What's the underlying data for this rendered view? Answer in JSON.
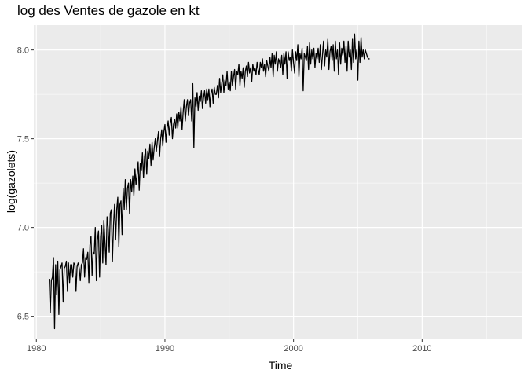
{
  "chart_data": {
    "type": "line",
    "title": "log des Ventes de gazole en kt",
    "xlabel": "Time",
    "ylabel": "log(gazolets)",
    "xlim": [
      1979.8,
      2017.8
    ],
    "ylim": [
      6.37,
      8.14
    ],
    "x_ticks": [
      1980,
      1990,
      2000,
      2010
    ],
    "x_tick_labels": [
      "1980",
      "1990",
      "2000",
      "2010"
    ],
    "y_ticks": [
      6.5,
      7.0,
      7.5,
      8.0
    ],
    "y_tick_labels": [
      "6.5",
      "7.0",
      "7.5",
      "8.0"
    ],
    "grid": true,
    "legend": "none",
    "colors": {
      "panel": "#ebebeb",
      "grid": "#ffffff",
      "line": "#000000"
    },
    "series": [
      {
        "start": 1981.0,
        "frequency": 12,
        "values": [
          6.71,
          6.52,
          6.7,
          6.72,
          6.83,
          6.43,
          6.79,
          6.62,
          6.81,
          6.51,
          6.76,
          6.78,
          6.8,
          6.58,
          6.77,
          6.78,
          6.81,
          6.64,
          6.8,
          6.69,
          6.79,
          6.79,
          6.72,
          6.8,
          6.79,
          6.64,
          6.78,
          6.8,
          6.77,
          6.7,
          6.79,
          6.8,
          6.88,
          6.72,
          6.83,
          6.82,
          6.86,
          6.69,
          6.9,
          6.95,
          6.73,
          6.86,
          6.85,
          7.0,
          6.7,
          6.93,
          6.98,
          6.72,
          6.95,
          7.01,
          6.8,
          7.04,
          6.92,
          6.79,
          7.06,
          7.0,
          6.86,
          7.08,
          7.1,
          6.81,
          7.01,
          7.13,
          6.93,
          7.1,
          7.17,
          6.89,
          7.13,
          7.15,
          6.96,
          7.22,
          7.1,
          7.27,
          7.1,
          7.22,
          7.25,
          7.08,
          7.27,
          7.2,
          7.29,
          7.18,
          7.33,
          7.24,
          7.3,
          7.37,
          7.21,
          7.36,
          7.32,
          7.42,
          7.28,
          7.4,
          7.44,
          7.3,
          7.43,
          7.39,
          7.47,
          7.35,
          7.48,
          7.38,
          7.45,
          7.5,
          7.43,
          7.49,
          7.54,
          7.4,
          7.5,
          7.55,
          7.46,
          7.54,
          7.58,
          7.48,
          7.56,
          7.6,
          7.52,
          7.59,
          7.62,
          7.5,
          7.58,
          7.61,
          7.56,
          7.64,
          7.56,
          7.65,
          7.6,
          7.68,
          7.55,
          7.65,
          7.72,
          7.6,
          7.68,
          7.72,
          7.63,
          7.7,
          7.72,
          7.6,
          7.81,
          7.45,
          7.73,
          7.68,
          7.76,
          7.66,
          7.74,
          7.71,
          7.77,
          7.67,
          7.73,
          7.77,
          7.7,
          7.78,
          7.72,
          7.78,
          7.68,
          7.76,
          7.78,
          7.7,
          7.79,
          7.75,
          7.75,
          7.8,
          7.73,
          7.84,
          7.76,
          7.81,
          7.86,
          7.76,
          7.83,
          7.8,
          7.88,
          7.78,
          7.82,
          7.77,
          7.88,
          7.8,
          7.85,
          7.89,
          7.78,
          7.88,
          7.86,
          7.92,
          7.8,
          7.88,
          7.84,
          7.9,
          7.79,
          7.88,
          7.91,
          7.85,
          7.93,
          7.87,
          7.9,
          7.82,
          7.92,
          7.88,
          7.9,
          7.86,
          7.93,
          7.89,
          7.86,
          7.93,
          7.9,
          7.95,
          7.88,
          7.92,
          7.85,
          7.94,
          7.91,
          7.88,
          7.96,
          7.9,
          7.98,
          7.85,
          7.97,
          7.92,
          7.99,
          7.88,
          7.95,
          7.93,
          7.9,
          7.97,
          7.86,
          7.98,
          7.92,
          7.99,
          7.84,
          7.99,
          7.94,
          7.96,
          7.88,
          8.0,
          7.93,
          7.87,
          7.99,
          7.94,
          8.03,
          7.85,
          7.98,
          7.95,
          8.01,
          7.77,
          7.98,
          7.96,
          7.94,
          8.02,
          7.89,
          8.04,
          7.92,
          8.0,
          7.95,
          8.01,
          7.9,
          7.98,
          7.95,
          8.01,
          7.93,
          8.03,
          7.89,
          7.97,
          8.05,
          7.91,
          8.0,
          7.96,
          8.06,
          7.89,
          7.99,
          8.02,
          7.94,
          8.03,
          7.88,
          8.05,
          7.95,
          8.0,
          7.86,
          8.04,
          7.92,
          8.01,
          7.97,
          8.05,
          7.93,
          8.02,
          7.88,
          8.05,
          7.96,
          8.0,
          7.89,
          8.06,
          7.93,
          8.09,
          7.95,
          8.0,
          7.83,
          8.05,
          7.93,
          8.07,
          7.96,
          8.0,
          7.95,
          8.0,
          7.98,
          7.96,
          7.95,
          7.95
        ]
      }
    ]
  }
}
